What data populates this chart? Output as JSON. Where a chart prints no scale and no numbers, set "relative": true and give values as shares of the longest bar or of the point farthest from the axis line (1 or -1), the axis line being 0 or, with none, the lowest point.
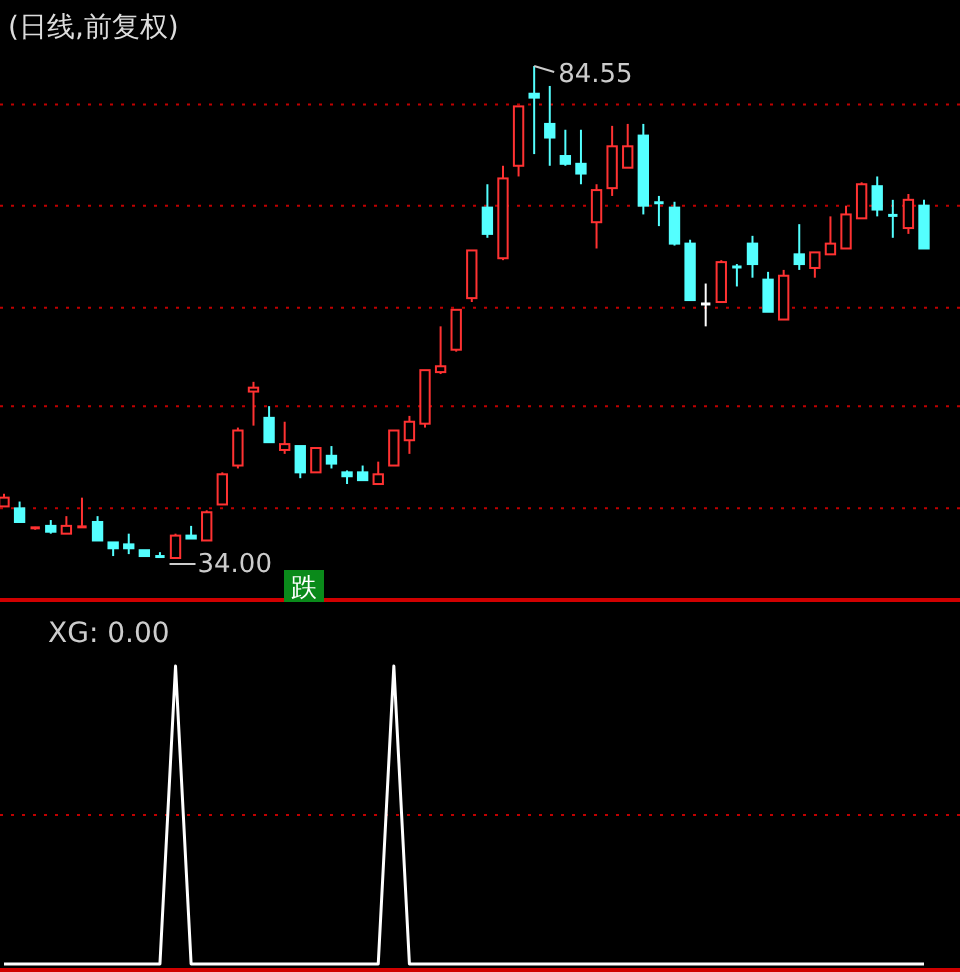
{
  "chart_data": [
    {
      "type": "candlestick",
      "title": "(日线,前复权)",
      "categories": [
        null,
        null,
        null,
        null,
        null,
        null,
        null,
        null,
        null,
        null,
        null,
        null,
        null,
        null,
        null,
        null,
        null,
        null,
        null,
        null,
        null,
        null,
        null,
        null,
        null,
        null,
        null,
        null,
        null,
        null,
        null,
        null,
        null,
        null,
        null,
        null,
        null,
        null,
        null,
        null,
        null,
        null,
        null,
        null,
        null,
        null,
        null,
        null,
        null,
        null,
        null,
        null,
        null,
        null,
        null,
        null,
        null,
        null,
        null,
        null
      ],
      "ohlc": [
        [
          39.3,
          40.6,
          39.3,
          40.2
        ],
        [
          39.1,
          39.8,
          37.7,
          37.7
        ],
        [
          37.1,
          37.2,
          36.9,
          37.1
        ],
        [
          37.3,
          37.9,
          36.5,
          36.7
        ],
        [
          36.5,
          38.3,
          36.5,
          37.3
        ],
        [
          37.1,
          40.2,
          37.1,
          37.3
        ],
        [
          37.7,
          38.3,
          35.8,
          35.8
        ],
        [
          35.6,
          35.6,
          34.2,
          35.0
        ],
        [
          35.4,
          36.5,
          34.4,
          35.0
        ],
        [
          34.8,
          34.8,
          34.1,
          34.2
        ],
        [
          34.2,
          34.6,
          34.1,
          34.1
        ],
        [
          34.0,
          36.5,
          34.0,
          36.3
        ],
        [
          36.3,
          37.3,
          36.0,
          36.0
        ],
        [
          35.8,
          38.9,
          35.8,
          38.7
        ],
        [
          39.5,
          42.8,
          39.5,
          42.6
        ],
        [
          43.5,
          47.4,
          43.2,
          47.1
        ],
        [
          51.1,
          52.1,
          47.6,
          51.5
        ],
        [
          48.4,
          49.6,
          45.9,
          45.9
        ],
        [
          45.1,
          48.0,
          44.7,
          45.7
        ],
        [
          45.5,
          45.5,
          42.2,
          42.8
        ],
        [
          42.8,
          45.3,
          42.8,
          45.3
        ],
        [
          44.5,
          45.5,
          43.2,
          43.7
        ],
        [
          42.8,
          43.0,
          41.6,
          42.4
        ],
        [
          42.8,
          43.5,
          42.0,
          42.0
        ],
        [
          41.6,
          43.9,
          41.6,
          42.6
        ],
        [
          43.5,
          47.1,
          43.5,
          47.1
        ],
        [
          46.1,
          48.6,
          44.7,
          48.0
        ],
        [
          47.8,
          53.3,
          47.4,
          53.3
        ],
        [
          53.1,
          57.8,
          52.9,
          53.7
        ],
        [
          55.4,
          59.5,
          55.2,
          59.5
        ],
        [
          60.7,
          65.6,
          60.3,
          65.6
        ],
        [
          70.0,
          72.4,
          66.9,
          67.3
        ],
        [
          64.8,
          74.3,
          64.6,
          73.0
        ],
        [
          74.3,
          80.4,
          73.2,
          80.4
        ],
        [
          81.7,
          84.55,
          75.5,
          81.3
        ],
        [
          78.6,
          82.5,
          74.3,
          77.2
        ],
        [
          75.3,
          78.0,
          74.3,
          74.5
        ],
        [
          74.5,
          78.0,
          72.4,
          73.5
        ],
        [
          68.5,
          72.4,
          65.8,
          71.8
        ],
        [
          72.0,
          78.4,
          71.2,
          76.3
        ],
        [
          74.1,
          78.6,
          74.1,
          76.3
        ],
        [
          77.4,
          78.6,
          69.3,
          70.2
        ],
        [
          70.6,
          71.2,
          68.1,
          70.4
        ],
        [
          70.0,
          70.6,
          66.1,
          66.3
        ],
        [
          66.3,
          66.7,
          60.5,
          60.5
        ],
        [
          60.1,
          62.2,
          57.8,
          60.1
        ],
        [
          60.3,
          64.6,
          60.3,
          64.4
        ],
        [
          64.0,
          64.2,
          61.9,
          63.8
        ],
        [
          66.3,
          67.1,
          62.8,
          64.2
        ],
        [
          62.6,
          63.4,
          59.3,
          59.3
        ],
        [
          58.5,
          63.6,
          58.5,
          63.0
        ],
        [
          65.2,
          68.3,
          63.6,
          64.2
        ],
        [
          63.8,
          65.4,
          62.8,
          65.4
        ],
        [
          65.2,
          69.1,
          65.2,
          66.3
        ],
        [
          65.8,
          70.2,
          65.8,
          69.3
        ],
        [
          68.9,
          72.6,
          68.9,
          72.4
        ],
        [
          72.2,
          73.2,
          69.1,
          69.8
        ],
        [
          69.3,
          70.8,
          66.9,
          69.1
        ],
        [
          67.9,
          71.4,
          67.3,
          70.8
        ],
        [
          70.2,
          70.8,
          65.8,
          65.8
        ]
      ],
      "colors": [
        "#ff3232",
        "#54ffff",
        "#ff3232",
        "#54ffff",
        "#ff3232",
        "#ff3232",
        "#54ffff",
        "#54ffff",
        "#54ffff",
        "#54ffff",
        "#54ffff",
        "#ff3232",
        "#54ffff",
        "#ff3232",
        "#ff3232",
        "#ff3232",
        "#ff3232",
        "#54ffff",
        "#ff3232",
        "#54ffff",
        "#ff3232",
        "#54ffff",
        "#54ffff",
        "#54ffff",
        "#ff3232",
        "#ff3232",
        "#ff3232",
        "#ff3232",
        "#ff3232",
        "#ff3232",
        "#ff3232",
        "#54ffff",
        "#ff3232",
        "#ff3232",
        "#54ffff",
        "#54ffff",
        "#54ffff",
        "#54ffff",
        "#ff3232",
        "#ff3232",
        "#ff3232",
        "#54ffff",
        "#54ffff",
        "#54ffff",
        "#54ffff",
        "#ffffff",
        "#ff3232",
        "#54ffff",
        "#54ffff",
        "#54ffff",
        "#ff3232",
        "#54ffff",
        "#ff3232",
        "#ff3232",
        "#ff3232",
        "#ff3232",
        "#54ffff",
        "#54ffff",
        "#ff3232",
        "#54ffff"
      ],
      "yticks": [
        {
          "value": 39.1,
          "label": null
        },
        {
          "value": 49.6,
          "label": null
        },
        {
          "value": 59.7,
          "label": null
        },
        {
          "value": 70.2,
          "label": null
        },
        {
          "value": 80.6,
          "label": null
        }
      ],
      "grid": "y",
      "annotations": [
        "84.55",
        "34.00",
        "跌"
      ]
    },
    {
      "type": "line",
      "title": "XG: 0.00",
      "relative": true,
      "categories": [
        null,
        null,
        null,
        null,
        null,
        null,
        null,
        null,
        null,
        null,
        null,
        null,
        null,
        null,
        null,
        null,
        null,
        null,
        null,
        null,
        null,
        null,
        null,
        null,
        null,
        null,
        null,
        null,
        null,
        null,
        null,
        null,
        null,
        null,
        null,
        null,
        null,
        null,
        null,
        null,
        null,
        null,
        null,
        null,
        null,
        null,
        null,
        null,
        null,
        null,
        null,
        null,
        null,
        null,
        null,
        null,
        null,
        null,
        null,
        null
      ],
      "series": [
        {
          "color": "#ffffff",
          "values": [
            0,
            0,
            0,
            0,
            0,
            0,
            0,
            0,
            0,
            0,
            0,
            1,
            0,
            0,
            0,
            0,
            0,
            0,
            0,
            0,
            0,
            0,
            0,
            0,
            0,
            1,
            0,
            0,
            0,
            0,
            0,
            0,
            0,
            0,
            0,
            0,
            0,
            0,
            0,
            0,
            0,
            0,
            0,
            0,
            0,
            0,
            0,
            0,
            0,
            0,
            0,
            0,
            0,
            0,
            0,
            0,
            0,
            0,
            0,
            0
          ]
        }
      ],
      "ref_lines": [
        {
          "axis": "y",
          "value": 0.5,
          "color": "#c00000",
          "line_style": "dotted"
        }
      ]
    }
  ]
}
